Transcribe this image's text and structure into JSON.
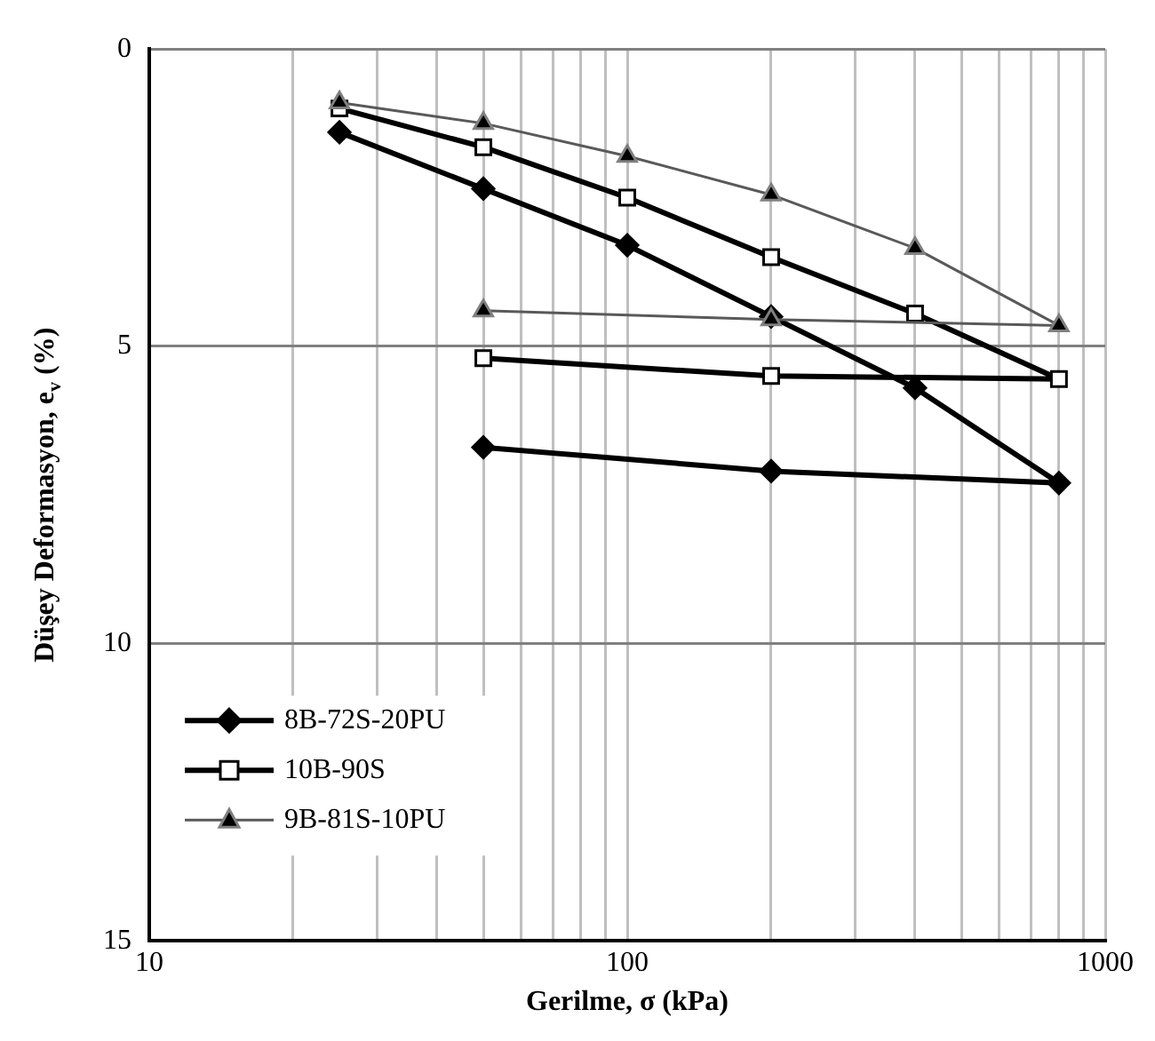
{
  "chart_data": {
    "type": "line",
    "xlabel": "Gerilme, σ (kPa)",
    "ylabel": "Düşey Deformasyon, e$_{v}$ (%)",
    "log": "x",
    "xlim": [
      10,
      1000
    ],
    "ylim": [
      15,
      0
    ],
    "xticks": [
      10,
      {
        "value": 20,
        "label": null
      },
      {
        "value": 30,
        "label": null
      },
      {
        "value": 40,
        "label": null
      },
      {
        "value": 50,
        "label": null
      },
      {
        "value": 60,
        "label": null
      },
      {
        "value": 70,
        "label": null
      },
      {
        "value": 80,
        "label": null
      },
      {
        "value": 90,
        "label": null
      },
      100,
      {
        "value": 200,
        "label": null
      },
      {
        "value": 300,
        "label": null
      },
      {
        "value": 400,
        "label": null
      },
      {
        "value": 500,
        "label": null
      },
      {
        "value": 600,
        "label": null
      },
      {
        "value": 700,
        "label": null
      },
      {
        "value": 800,
        "label": null
      },
      {
        "value": 900,
        "label": null
      },
      1000
    ],
    "yticks": [
      0,
      5,
      10,
      15
    ],
    "grid": true,
    "legend": "bottom left",
    "line_style": "solid",
    "series": [
      {
        "name": "8B-72S-20PU",
        "color": "#000000",
        "marker": "diamond",
        "x": [
          25,
          50,
          100,
          200,
          400,
          800,
          200,
          50
        ],
        "values": [
          1.4,
          2.35,
          3.3,
          4.5,
          5.7,
          7.3,
          7.1,
          6.7
        ]
      },
      {
        "name": "10B-90S",
        "color": "#000000",
        "marker": "square",
        "x": [
          25,
          50,
          100,
          200,
          400,
          800,
          200,
          50
        ],
        "values": [
          1.0,
          1.65,
          2.5,
          3.5,
          4.45,
          5.55,
          5.5,
          5.2
        ]
      },
      {
        "name": "9B-81S-10PU",
        "color": "#595959",
        "marker": "triangle",
        "x": [
          25,
          50,
          100,
          200,
          400,
          800,
          200,
          50
        ],
        "values": [
          0.9,
          1.25,
          1.8,
          2.45,
          3.35,
          4.65,
          4.55,
          4.4
        ]
      }
    ]
  }
}
